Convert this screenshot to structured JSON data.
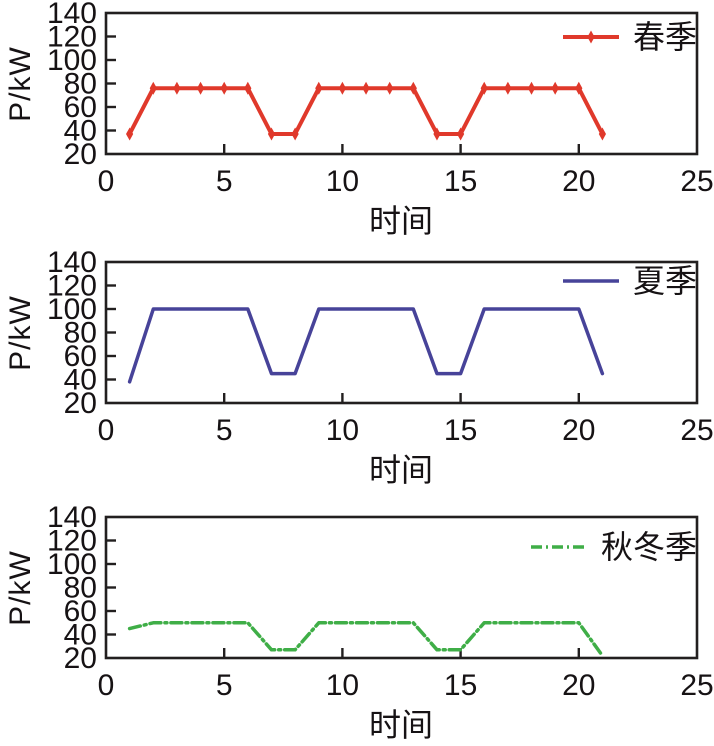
{
  "figure": {
    "description": "Three stacked seasonal electrical load profile line charts",
    "frame_color": "#221f1f",
    "text_color": "#161214",
    "background": "#ffffff"
  },
  "chart_data": [
    {
      "type": "line",
      "title": "",
      "legend": "春季",
      "legend_position": "top-right-inside",
      "color": "#e0392b",
      "line_style": "solid",
      "line_width": 4,
      "marker": "vertical-diamond",
      "dash": null,
      "xlabel": "时间",
      "ylabel": "P/kW",
      "xlim": [
        0,
        25
      ],
      "ylim": [
        20,
        140
      ],
      "x_ticks": [
        0,
        5,
        10,
        15,
        20,
        25
      ],
      "y_ticks": [
        20,
        40,
        60,
        80,
        100,
        120,
        140
      ],
      "grid": false,
      "x": [
        1,
        2,
        3,
        4,
        5,
        6,
        7,
        8,
        9,
        10,
        11,
        12,
        13,
        14,
        15,
        16,
        17,
        18,
        19,
        20,
        21
      ],
      "values": [
        37,
        76,
        76,
        76,
        76,
        76,
        37,
        37,
        76,
        76,
        76,
        76,
        76,
        37,
        37,
        76,
        76,
        76,
        76,
        76,
        37
      ]
    },
    {
      "type": "line",
      "title": "",
      "legend": "夏季",
      "legend_position": "top-right-inside",
      "color": "#474399",
      "line_style": "solid",
      "line_width": 3.5,
      "marker": null,
      "dash": null,
      "xlabel": "时间",
      "ylabel": "P/kW",
      "xlim": [
        0,
        25
      ],
      "ylim": [
        20,
        140
      ],
      "x_ticks": [
        0,
        5,
        10,
        15,
        20,
        25
      ],
      "y_ticks": [
        20,
        40,
        60,
        80,
        100,
        120,
        140
      ],
      "grid": false,
      "x": [
        1,
        2,
        3,
        4,
        5,
        6,
        7,
        8,
        9,
        10,
        11,
        12,
        13,
        14,
        15,
        16,
        17,
        18,
        19,
        20,
        21
      ],
      "values": [
        38,
        100,
        100,
        100,
        100,
        100,
        45,
        45,
        100,
        100,
        100,
        100,
        100,
        45,
        45,
        100,
        100,
        100,
        100,
        100,
        45
      ]
    },
    {
      "type": "line",
      "title": "",
      "legend": "秋冬季",
      "legend_position": "top-right-inside",
      "color": "#3fae47",
      "line_style": "dash-dot",
      "line_width": 3.5,
      "marker": null,
      "dash": "11 4 2 4",
      "xlabel": "时间",
      "ylabel": "P/kW",
      "xlim": [
        0,
        25
      ],
      "ylim": [
        20,
        140
      ],
      "x_ticks": [
        0,
        5,
        10,
        15,
        20,
        25
      ],
      "y_ticks": [
        20,
        40,
        60,
        80,
        100,
        120,
        140
      ],
      "grid": false,
      "x": [
        1,
        2,
        3,
        4,
        5,
        6,
        7,
        8,
        9,
        10,
        11,
        12,
        13,
        14,
        15,
        16,
        17,
        18,
        19,
        20,
        21
      ],
      "values": [
        45,
        50,
        50,
        50,
        50,
        50,
        27,
        27,
        50,
        50,
        50,
        50,
        50,
        27,
        27,
        50,
        50,
        50,
        50,
        50,
        22
      ]
    }
  ]
}
